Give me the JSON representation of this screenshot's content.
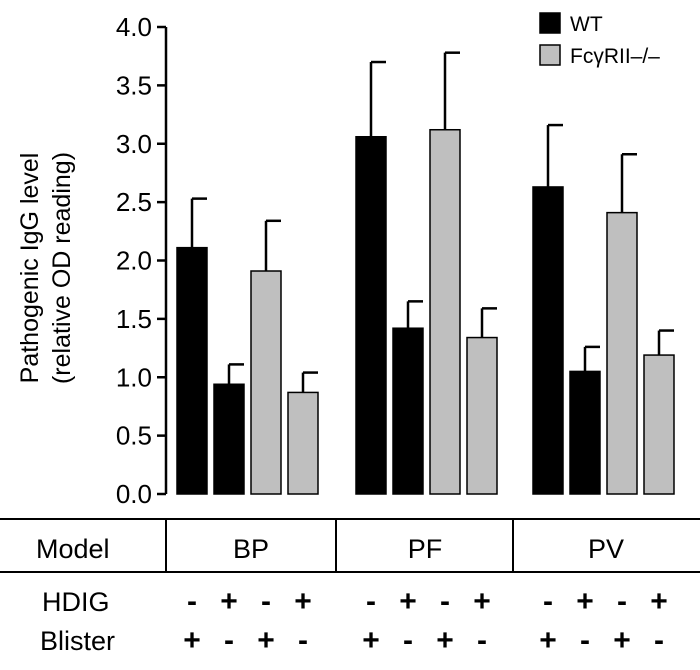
{
  "chart_data": {
    "type": "bar",
    "ylabel_lines": [
      "Pathogenic IgG level",
      "(relative OD reading)"
    ],
    "ylim": [
      0,
      4.0
    ],
    "yticks": [
      "0.0",
      "0.5",
      "1.0",
      "1.5",
      "2.0",
      "2.5",
      "3.0",
      "3.5",
      "4.0"
    ],
    "grid": false,
    "legend_position": "top-right",
    "legend": [
      {
        "name": "WT",
        "color": "#000000"
      },
      {
        "name": "FcγRII–/–",
        "color": "#bfbfbf"
      }
    ],
    "groups": [
      "BP",
      "PF",
      "PV"
    ],
    "bars": [
      {
        "group": "BP",
        "series": "WT",
        "hdig": "-",
        "blister": "+",
        "value": 2.11,
        "error": 0.42
      },
      {
        "group": "BP",
        "series": "WT",
        "hdig": "+",
        "blister": "-",
        "value": 0.94,
        "error": 0.17
      },
      {
        "group": "BP",
        "series": "FcγRII–/–",
        "hdig": "-",
        "blister": "+",
        "value": 1.91,
        "error": 0.43
      },
      {
        "group": "BP",
        "series": "FcγRII–/–",
        "hdig": "+",
        "blister": "-",
        "value": 0.87,
        "error": 0.17
      },
      {
        "group": "PF",
        "series": "WT",
        "hdig": "-",
        "blister": "+",
        "value": 3.06,
        "error": 0.64
      },
      {
        "group": "PF",
        "series": "WT",
        "hdig": "+",
        "blister": "-",
        "value": 1.42,
        "error": 0.23
      },
      {
        "group": "PF",
        "series": "FcγRII–/–",
        "hdig": "-",
        "blister": "+",
        "value": 3.12,
        "error": 0.66
      },
      {
        "group": "PF",
        "series": "FcγRII–/–",
        "hdig": "+",
        "blister": "-",
        "value": 1.34,
        "error": 0.25
      },
      {
        "group": "PV",
        "series": "WT",
        "hdig": "-",
        "blister": "+",
        "value": 2.63,
        "error": 0.53
      },
      {
        "group": "PV",
        "series": "WT",
        "hdig": "+",
        "blister": "-",
        "value": 1.05,
        "error": 0.21
      },
      {
        "group": "PV",
        "series": "FcγRII–/–",
        "hdig": "-",
        "blister": "+",
        "value": 2.41,
        "error": 0.5
      },
      {
        "group": "PV",
        "series": "FcγRII–/–",
        "hdig": "+",
        "blister": "-",
        "value": 1.19,
        "error": 0.21
      }
    ],
    "table_rows": [
      {
        "label": "Model"
      },
      {
        "label": "HDIG"
      },
      {
        "label": "Blister"
      }
    ]
  }
}
